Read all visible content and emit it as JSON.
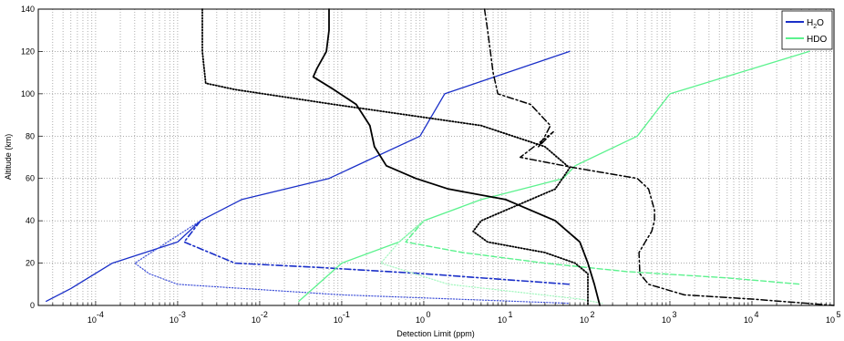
{
  "chart_data": {
    "type": "line",
    "title": "",
    "xlabel": "Detection Limit (ppm)",
    "ylabel": "Altitude (km)",
    "xscale": "log",
    "xlim": [
      2e-05,
      100000
    ],
    "ylim": [
      0,
      140
    ],
    "grid": true,
    "legend_position": "top-right",
    "x_tick_labels": [
      {
        "base": "10",
        "exp": "-4",
        "value": 0.0001
      },
      {
        "base": "10",
        "exp": "-3",
        "value": 0.001
      },
      {
        "base": "10",
        "exp": "-2",
        "value": 0.01
      },
      {
        "base": "10",
        "exp": "-1",
        "value": 0.1
      },
      {
        "base": "10",
        "exp": "0",
        "value": 1
      },
      {
        "base": "10",
        "exp": "1",
        "value": 10
      },
      {
        "base": "10",
        "exp": "2",
        "value": 100
      },
      {
        "base": "10",
        "exp": "3",
        "value": 1000
      },
      {
        "base": "10",
        "exp": "4",
        "value": 10000
      },
      {
        "base": "10",
        "exp": "5",
        "value": 100000
      }
    ],
    "y_ticks": [
      "0",
      "20",
      "40",
      "60",
      "80",
      "100",
      "120",
      "140"
    ],
    "legend": [
      {
        "label_main": "H",
        "label_sub": "2",
        "label_tail": "O",
        "color": "#1a2fc8"
      },
      {
        "label_main": "HDO",
        "label_sub": "",
        "label_tail": "",
        "color": "#5cf28e"
      }
    ],
    "series": [
      {
        "group": "H2O",
        "style": "solid",
        "color": "#1a2fc8",
        "width": 1.3,
        "x": [
          2.5e-05,
          5e-05,
          0.00016,
          0.001,
          0.0019,
          0.006,
          0.07,
          0.9,
          1.8,
          60
        ],
        "y": [
          2,
          8,
          20,
          30,
          40,
          50,
          60,
          80,
          100,
          120
        ]
      },
      {
        "group": "H2O",
        "style": "dashdot",
        "color": "#1a2fc8",
        "width": 1.6,
        "x": [
          0.0019,
          0.0012,
          0.005,
          0.05,
          1,
          60
        ],
        "y": [
          40,
          30,
          20,
          18,
          15,
          10
        ]
      },
      {
        "group": "H2O",
        "style": "dotted",
        "color": "#3d4fd8",
        "width": 1.2,
        "x": [
          0.0019,
          0.0003,
          0.00045,
          0.001,
          0.1,
          60
        ],
        "y": [
          40,
          20,
          15,
          10,
          5,
          1
        ]
      },
      {
        "group": "HDO",
        "style": "solid",
        "color": "#5cf28e",
        "width": 1.3,
        "x": [
          0.03,
          0.1,
          0.5,
          1,
          5,
          50,
          70,
          400,
          1000,
          50000
        ],
        "y": [
          2,
          20,
          30,
          40,
          50,
          60,
          66,
          80,
          100,
          120
        ]
      },
      {
        "group": "HDO",
        "style": "dashed",
        "color": "#5cf28e",
        "width": 1.4,
        "x": [
          1,
          0.6,
          3,
          30,
          300,
          5000,
          40000
        ],
        "y": [
          40,
          30,
          25,
          20,
          16,
          13,
          10
        ]
      },
      {
        "group": "HDO",
        "style": "dotted",
        "color": "#a2f7be",
        "width": 1.2,
        "x": [
          1,
          0.5,
          0.3,
          2,
          80,
          150
        ],
        "y": [
          40,
          30,
          20,
          10,
          3,
          1
        ]
      },
      {
        "group": "black",
        "style": "solid",
        "color": "#000000",
        "width": 1.8,
        "x": [
          0.07,
          0.07,
          0.065,
          0.05,
          0.045,
          0.08,
          0.15,
          0.22,
          0.25,
          0.35,
          0.8,
          2,
          10,
          40,
          80,
          100,
          120,
          140
        ],
        "y": [
          140,
          130,
          120,
          112,
          108,
          102,
          95,
          85,
          75,
          66,
          60,
          55,
          50,
          40,
          30,
          20,
          10,
          0
        ]
      },
      {
        "group": "black",
        "style": "dashdot",
        "color": "#000000",
        "width": 1.5,
        "x": [
          5.5,
          6,
          7,
          8,
          20,
          35,
          30,
          25,
          38,
          15,
          70,
          400,
          550,
          650,
          650,
          600,
          500,
          420,
          430,
          550,
          1500,
          10000,
          100000
        ],
        "y": [
          140,
          130,
          110,
          100,
          95,
          85,
          80,
          75,
          82,
          70,
          65,
          60,
          55,
          45,
          40,
          35,
          30,
          25,
          15,
          10,
          5,
          3,
          0
        ]
      },
      {
        "group": "black",
        "style": "dotted",
        "color": "#000000",
        "width": 1.8,
        "x": [
          0.002,
          0.002,
          0.0022,
          0.005,
          0.08,
          5,
          30,
          60,
          40,
          10,
          5,
          4,
          6,
          30,
          70,
          100,
          100
        ],
        "y": [
          140,
          120,
          105,
          102,
          95,
          85,
          75,
          65,
          55,
          45,
          40,
          35,
          30,
          25,
          20,
          15,
          0
        ]
      }
    ]
  }
}
